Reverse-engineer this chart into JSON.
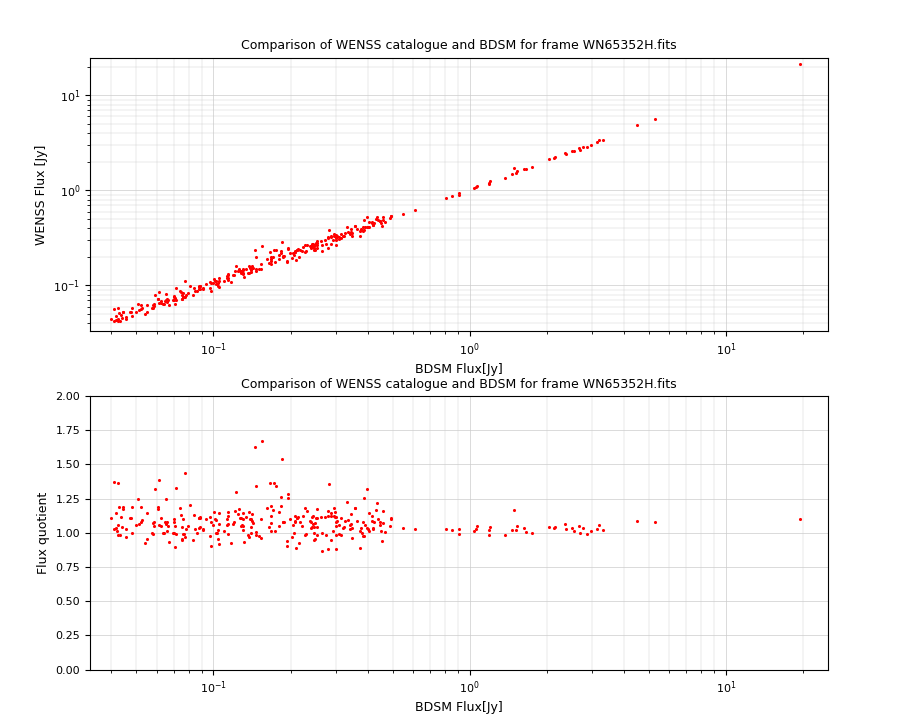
{
  "title": "Comparison of WENSS catalogue and BDSM for frame WN65352H.fits",
  "xlabel1": "BDSM Flux[Jy]",
  "ylabel1": "WENSS Flux [Jy]",
  "xlabel2": "BDSM Flux[Jy]",
  "ylabel2": "Flux quotient",
  "dot_color": "#ff0000",
  "dot_size": 5,
  "background": "#ffffff",
  "grid_color": "#cccccc",
  "xlim1": [
    0.033,
    25.0
  ],
  "ylim1": [
    0.033,
    25.0
  ],
  "xlim2": [
    0.033,
    25.0
  ],
  "ylim2": [
    0.0,
    2.0
  ],
  "yticks2": [
    0.0,
    0.25,
    0.5,
    0.75,
    1.0,
    1.25,
    1.5,
    1.75,
    2.0
  ],
  "seed": 12345,
  "title_fontsize": 9,
  "label_fontsize": 9,
  "tick_fontsize": 8
}
